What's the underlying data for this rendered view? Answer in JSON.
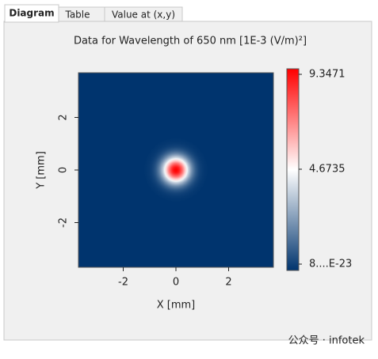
{
  "tabs": [
    "Diagram",
    "Table",
    "Value at (x,y)"
  ],
  "watermark": "公众号 · infotek",
  "chart_data": {
    "type": "heatmap",
    "title": "Data for Wavelength of 650 nm  [1E-3 (V/m)²]",
    "x_label": "X [mm]",
    "y_label": "Y [mm]",
    "xlim": [
      -3.7,
      3.7
    ],
    "ylim": [
      -3.7,
      3.7
    ],
    "xticks": [
      -2,
      0,
      2
    ],
    "yticks": [
      -2,
      0,
      2
    ],
    "spot": {
      "x": 0,
      "y": 0,
      "peak": 9.3471,
      "sigma": 0.35
    },
    "background": 8e-23,
    "colorscale": [
      "#00346e",
      "#ffffff",
      "#ff0000"
    ],
    "clim": [
      8e-23,
      9.3471
    ],
    "cticks": [
      {
        "value": 9.3471,
        "label": "9.3471"
      },
      {
        "value": 4.6735,
        "label": "4.6735"
      },
      {
        "value": 8e-23,
        "label": "8....E-23"
      }
    ]
  }
}
